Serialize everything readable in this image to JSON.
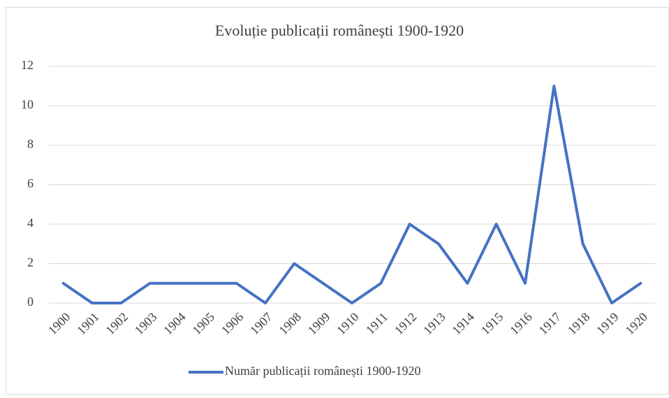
{
  "chart_data": {
    "type": "line",
    "title": "Evoluție publicații românești 1900-1920",
    "categories": [
      "1900",
      "1901",
      "1902",
      "1903",
      "1904",
      "1905",
      "1906",
      "1907",
      "1908",
      "1909",
      "1910",
      "1911",
      "1912",
      "1913",
      "1914",
      "1915",
      "1916",
      "1917",
      "1918",
      "1919",
      "1920"
    ],
    "series": [
      {
        "name": "Număr publicații românești 1900-1920",
        "color": "#4472c4",
        "values": [
          1,
          0,
          0,
          1,
          1,
          1,
          1,
          0,
          2,
          1,
          0,
          1,
          4,
          3,
          1,
          4,
          1,
          11,
          3,
          0,
          1
        ]
      }
    ],
    "ylim": [
      0,
      12
    ],
    "yticks": [
      0,
      2,
      4,
      6,
      8,
      10,
      12
    ],
    "grid": true,
    "legend": "bottom"
  }
}
